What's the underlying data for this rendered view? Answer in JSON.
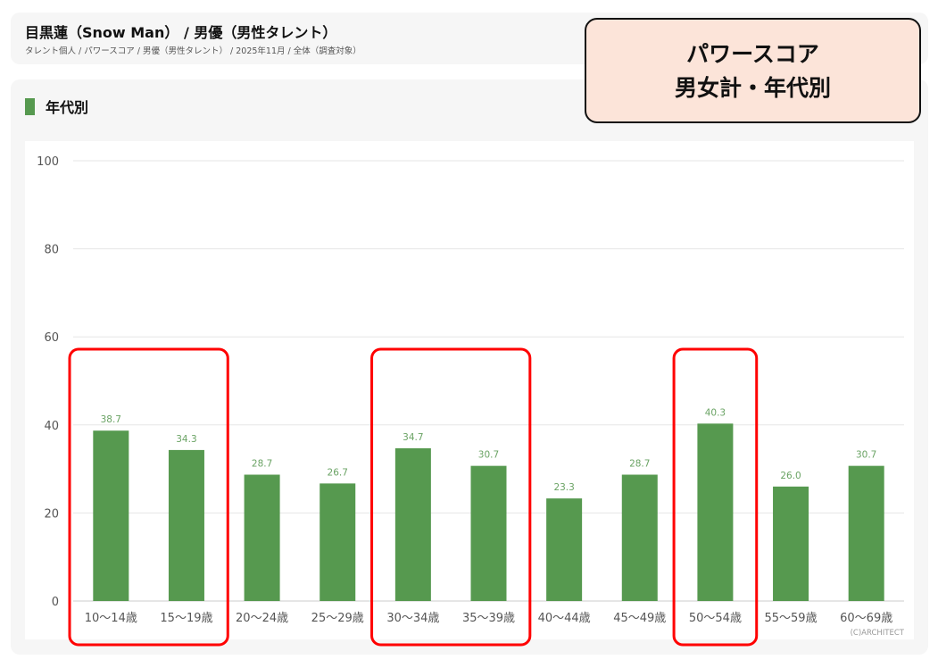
{
  "header": {
    "title": "目黒蓮（Snow Man） / 男優（男性タレント）",
    "breadcrumb": "タレント個人 / パワースコア / 男優（男性タレント） / 2025年11月 / 全体（調査対象）"
  },
  "section": {
    "title": "年代別"
  },
  "callout": {
    "line1": "パワースコア",
    "line2": "男女計・年代別"
  },
  "credit": "(C)ARCHITECT",
  "colors": {
    "bar": "#56994f",
    "highlight": "#ff0000",
    "callout_bg": "#fce4d9"
  },
  "chart_data": {
    "type": "bar",
    "categories": [
      "10〜14歳",
      "15〜19歳",
      "20〜24歳",
      "25〜29歳",
      "30〜34歳",
      "35〜39歳",
      "40〜44歳",
      "45〜49歳",
      "50〜54歳",
      "55〜59歳",
      "60〜69歳"
    ],
    "values": [
      38.7,
      34.3,
      28.7,
      26.7,
      34.7,
      30.7,
      23.3,
      28.7,
      40.3,
      26.0,
      30.7
    ],
    "value_labels": [
      "38.7",
      "34.3",
      "28.7",
      "26.7",
      "34.7",
      "30.7",
      "23.3",
      "28.7",
      "40.3",
      "26.0",
      "30.7"
    ],
    "ylim": [
      0,
      100
    ],
    "yticks": [
      0,
      20,
      40,
      60,
      80,
      100
    ],
    "grid": true,
    "highlighted_groups": [
      [
        0,
        1
      ],
      [
        4,
        5
      ],
      [
        8
      ]
    ]
  }
}
